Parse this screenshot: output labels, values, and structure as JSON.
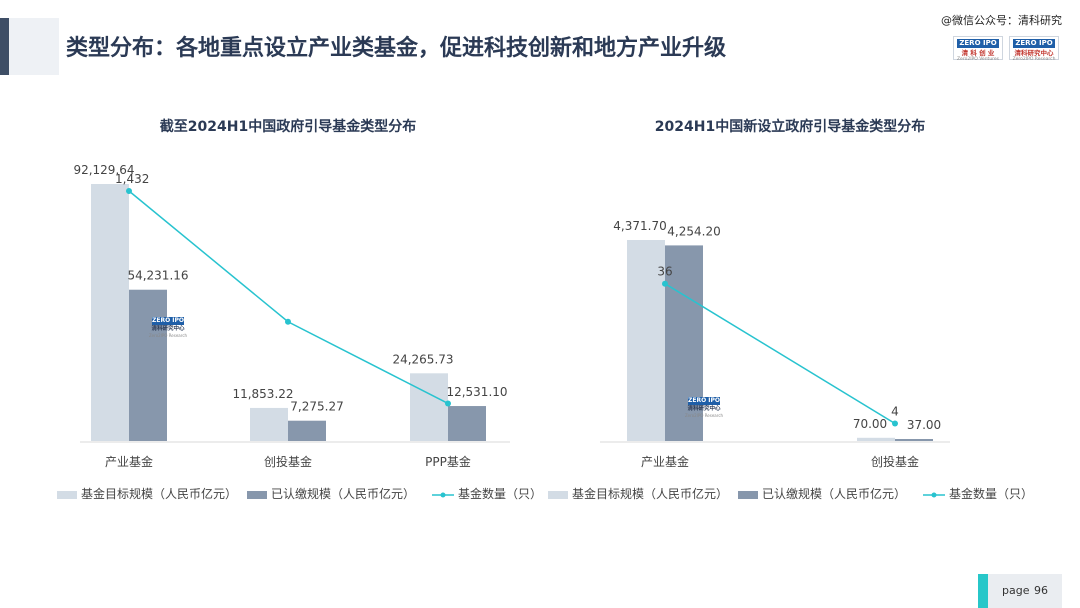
{
  "header": {
    "title": "类型分布：各地重点设立产业类基金，促进科技创新和地方产业升级",
    "watermark": "@微信公众号：清科研究",
    "logo_left": {
      "top": "ZERO IPO",
      "mid": "清 科 创 业",
      "sub": "Zero2IPO Ventures"
    },
    "logo_right": {
      "top": "ZERO IPO",
      "mid": "清科研究中心",
      "sub": "Zero2IPO Research"
    }
  },
  "watermark_logo": {
    "top": "ZERO IPO",
    "mid": "清科研究中心",
    "sub": "Zero2IPO Research"
  },
  "footer": {
    "label": "page",
    "number": "96"
  },
  "colors": {
    "target": "#d3dce5",
    "paid": "#8797ac",
    "count": "#28c3cf",
    "title": "#2b3a55"
  },
  "chart_data": [
    {
      "type": "bar",
      "title": "截至2024H1中国政府引导基金类型分布",
      "categories": [
        "产业基金",
        "创投基金",
        "PPP基金"
      ],
      "series": [
        {
          "name": "基金目标规模（人民币亿元）",
          "values": [
            92129.64,
            11853.22,
            24265.73
          ],
          "labels": [
            "92,129.64",
            "11,853.22",
            "24,265.73"
          ]
        },
        {
          "name": "已认缴规模（人民币亿元）",
          "values": [
            54231.16,
            7275.27,
            12531.1
          ],
          "labels": [
            "54,231.16",
            "7,275.27",
            "12,531.10"
          ]
        },
        {
          "name": "基金数量（只）",
          "type": "line",
          "values": [
            1432,
            683,
            215
          ],
          "labels": [
            "1,432",
            "",
            ""
          ]
        }
      ],
      "legend": "bottom",
      "grid": false
    },
    {
      "type": "bar",
      "title": "2024H1中国新设立政府引导基金类型分布",
      "categories": [
        "产业基金",
        "创投基金"
      ],
      "series": [
        {
          "name": "基金目标规模（人民币亿元）",
          "values": [
            4371.7,
            70.0
          ],
          "labels": [
            "4,371.70",
            "70.00"
          ]
        },
        {
          "name": "已认缴规模（人民币亿元）",
          "values": [
            4254.2,
            37.0
          ],
          "labels": [
            "4,254.20",
            "37.00"
          ]
        },
        {
          "name": "基金数量（只）",
          "type": "line",
          "values": [
            36,
            4
          ],
          "labels": [
            "36",
            "4"
          ]
        }
      ],
      "legend": "bottom",
      "grid": false
    }
  ]
}
